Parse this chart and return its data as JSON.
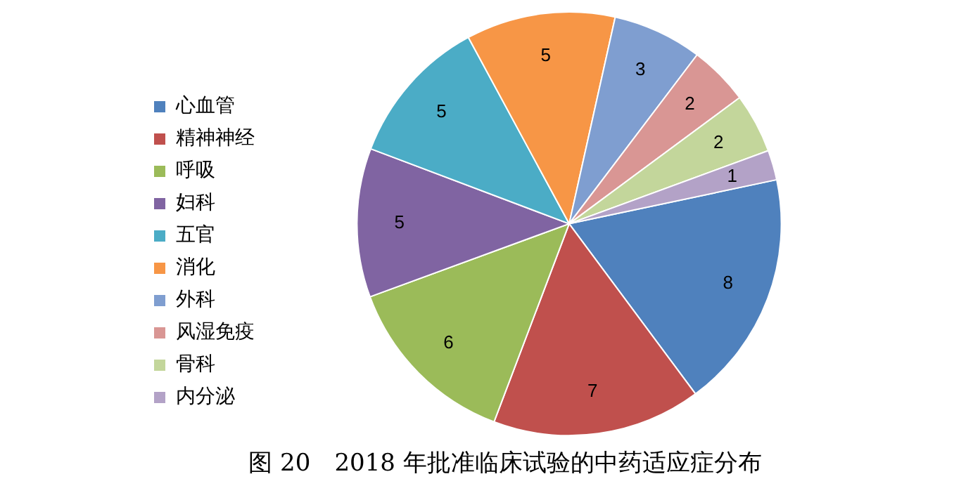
{
  "chart_data": {
    "type": "pie",
    "title": "图 20　2018 年批准临床试验的中药适应症分布",
    "categories": [
      "心血管",
      "精神神经",
      "呼吸",
      "妇科",
      "五官",
      "消化",
      "外科",
      "风湿免疫",
      "骨科",
      "内分泌"
    ],
    "values": [
      8,
      7,
      6,
      5,
      5,
      5,
      3,
      2,
      2,
      1
    ],
    "colors": [
      "#4f81bd",
      "#c0504d",
      "#9bbb59",
      "#8064a2",
      "#4bacc6",
      "#f79646",
      "#7f9ed0",
      "#d99694",
      "#c3d69b",
      "#b3a2c7"
    ],
    "data_labels": true,
    "legend": "left"
  }
}
